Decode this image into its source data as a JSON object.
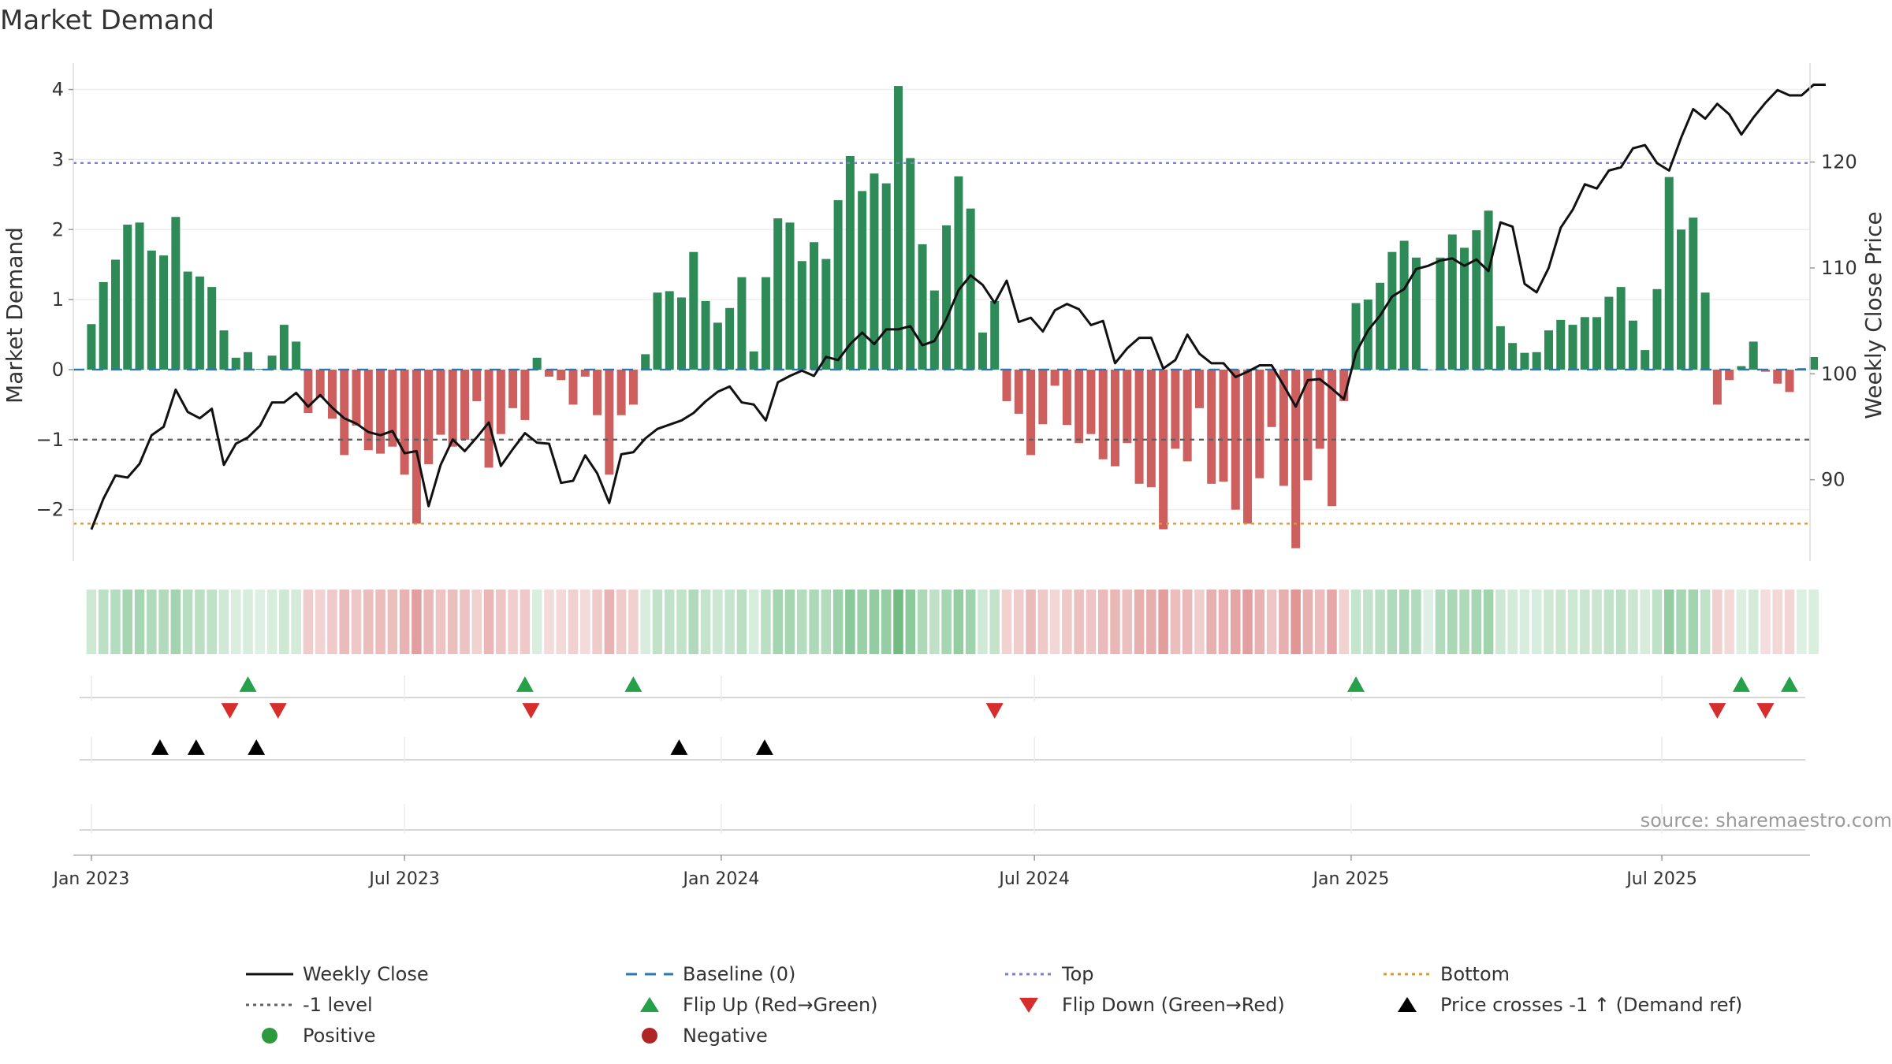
{
  "chart_data": {
    "type": "bar",
    "title": "Market Demand",
    "ylabel": "Market Demand",
    "y2label": "Weekly Close Price",
    "ylim": [
      -2.6,
      4.4
    ],
    "y2lim": [
      83.2,
      129.5
    ],
    "yticks": [
      {
        "value": 4,
        "label": "4"
      },
      {
        "value": 3,
        "label": "3"
      },
      {
        "value": 2,
        "label": "2"
      },
      {
        "value": 1,
        "label": "1"
      },
      {
        "value": 0,
        "label": "0"
      },
      {
        "value": -1,
        "label": "−1"
      },
      {
        "value": -2,
        "label": "−2"
      }
    ],
    "y2ticks": [
      {
        "value": 90,
        "label": "90"
      },
      {
        "value": 100,
        "label": "100"
      },
      {
        "value": 110,
        "label": "110"
      },
      {
        "value": 120,
        "label": "120"
      }
    ],
    "xticks": [
      {
        "week": 0,
        "label": "Jan 2023"
      },
      {
        "week": 26,
        "label": "Jul 2023"
      },
      {
        "week": 52.3,
        "label": "Jan 2024"
      },
      {
        "week": 78.3,
        "label": "Jul 2024"
      },
      {
        "week": 104.6,
        "label": "Jan 2025"
      },
      {
        "week": 130.4,
        "label": "Jul 2025"
      }
    ],
    "reference_lines": [
      {
        "name": "Top",
        "value": 2.95,
        "color": "#7b7fd6",
        "style": "dotted"
      },
      {
        "name": "-1 level",
        "value": -1,
        "color": "#606060",
        "style": "dashed"
      },
      {
        "name": "Bottom",
        "value": -2.2,
        "color": "#e09a2c",
        "style": "dotted"
      },
      {
        "name": "Baseline (0)",
        "value": 0,
        "color": "#2a7ab0",
        "style": "dashed"
      }
    ],
    "weeks_start": -1.5,
    "weeks_end": 142.7,
    "demand": [
      0.65,
      1.25,
      1.57,
      2.07,
      2.1,
      1.7,
      1.63,
      2.18,
      1.4,
      1.33,
      1.18,
      0.56,
      0.17,
      0.25,
      0.01,
      0.2,
      0.64,
      0.4,
      -0.62,
      -0.4,
      -0.7,
      -1.22,
      -0.8,
      -1.15,
      -1.2,
      -1.1,
      -1.5,
      -2.2,
      -1.35,
      -0.93,
      -1.1,
      -1.0,
      -0.45,
      -1.4,
      -0.92,
      -0.55,
      -0.72,
      0.17,
      -0.1,
      -0.15,
      -0.5,
      -0.1,
      -0.65,
      -1.5,
      -0.65,
      -0.5,
      0.22,
      1.1,
      1.12,
      1.03,
      1.68,
      0.98,
      0.67,
      0.88,
      1.32,
      0.26,
      1.32,
      2.16,
      2.1,
      1.55,
      1.82,
      1.58,
      2.42,
      3.05,
      2.55,
      2.8,
      2.66,
      4.05,
      3.02,
      1.79,
      1.13,
      2.06,
      2.76,
      2.3,
      0.53,
      0.98,
      -0.45,
      -0.63,
      -1.22,
      -0.78,
      -0.23,
      -0.79,
      -1.05,
      -0.92,
      -1.28,
      -1.38,
      -1.05,
      -1.63,
      -1.68,
      -2.28,
      -1.13,
      -1.31,
      -0.55,
      -1.63,
      -1.6,
      -2.0,
      -2.2,
      -1.55,
      -0.82,
      -1.66,
      -2.55,
      -1.58,
      -1.13,
      -1.95,
      -0.45,
      0.95,
      1.0,
      1.24,
      1.68,
      1.84,
      1.6,
      0.0,
      1.6,
      1.93,
      1.74,
      1.99,
      2.27,
      0.62,
      0.38,
      0.24,
      0.25,
      0.56,
      0.71,
      0.64,
      0.75,
      0.75,
      1.04,
      1.18,
      0.7,
      0.28,
      1.15,
      2.75,
      2.0,
      2.17,
      1.1,
      -0.5,
      -0.15,
      0.05,
      0.4,
      -0.03,
      -0.2,
      -0.32,
      0.02,
      0.18
    ],
    "close": [
      85.3,
      88.2,
      90.4,
      90.2,
      91.5,
      94.2,
      95.0,
      98.5,
      96.4,
      95.8,
      96.7,
      91.4,
      93.4,
      94.0,
      95.1,
      97.3,
      97.3,
      98.2,
      96.9,
      98.0,
      96.8,
      95.8,
      95.3,
      94.5,
      94.2,
      94.6,
      92.5,
      92.7,
      87.5,
      91.4,
      93.8,
      92.7,
      94.0,
      95.4,
      91.3,
      92.9,
      94.4,
      93.5,
      93.4,
      89.7,
      89.9,
      92.3,
      90.6,
      87.8,
      92.4,
      92.6,
      93.9,
      94.8,
      95.2,
      95.6,
      96.3,
      97.4,
      98.3,
      98.8,
      97.3,
      97.1,
      95.6,
      99.2,
      99.8,
      100.3,
      99.8,
      101.6,
      101.3,
      102.8,
      103.9,
      102.8,
      104.2,
      104.2,
      104.5,
      102.7,
      103.1,
      105.2,
      107.9,
      109.3,
      108.4,
      106.7,
      108.8,
      104.9,
      105.3,
      104.0,
      106.0,
      106.6,
      106.1,
      104.6,
      105.0,
      101.0,
      102.4,
      103.4,
      103.4,
      100.5,
      101.3,
      103.7,
      101.9,
      101.0,
      101.0,
      99.7,
      100.2,
      100.8,
      100.8,
      98.9,
      96.9,
      99.4,
      99.5,
      98.6,
      97.6,
      102.0,
      104.1,
      105.5,
      107.3,
      108.0,
      109.9,
      110.2,
      110.7,
      110.9,
      110.2,
      110.8,
      109.7,
      114.3,
      113.9,
      108.5,
      107.7,
      110.0,
      113.8,
      115.5,
      117.9,
      117.5,
      119.2,
      119.5,
      121.3,
      121.6,
      119.9,
      119.2,
      122.3,
      125.0,
      124.1,
      125.5,
      124.5,
      122.6,
      124.2,
      125.6,
      126.8,
      126.3,
      126.3,
      127.3,
      127.3
    ],
    "flip_up_weeks": [
      13,
      36,
      45,
      105,
      137,
      141
    ],
    "flip_down_weeks": [
      11.5,
      15.5,
      36.5,
      75,
      135,
      139
    ],
    "price_cross_weeks": [
      5.7,
      8.7,
      13.7,
      48.8,
      55.9
    ],
    "strip_colors": {
      "positive": "#4aab62",
      "negative": "#c94545"
    },
    "source": "source: sharemaestro.com",
    "legend": [
      {
        "label": "Weekly Close",
        "kind": "line",
        "color": "#111111"
      },
      {
        "label": "Baseline (0)",
        "kind": "dash",
        "color": "#2a7ab0"
      },
      {
        "label": "Top",
        "kind": "dot",
        "color": "#7b7fd6"
      },
      {
        "label": "Bottom",
        "kind": "dot",
        "color": "#e09a2c"
      },
      {
        "label": "-1 level",
        "kind": "dot",
        "color": "#606060"
      },
      {
        "label": "Flip Up (Red→Green)",
        "kind": "tri-up",
        "color": "#27a04a"
      },
      {
        "label": "Flip Down (Green→Red)",
        "kind": "tri-down",
        "color": "#d62d2d"
      },
      {
        "label": "Price crosses -1 ↑ (Demand ref)",
        "kind": "tri-up",
        "color": "#000000"
      },
      {
        "label": "Positive",
        "kind": "circle",
        "color": "#2a9a3c"
      },
      {
        "label": "Negative",
        "kind": "circle",
        "color": "#b02424"
      }
    ],
    "colors": {
      "positive_bar": "#2e8a57",
      "negative_bar": "#cd5f5f",
      "close_line": "#111111"
    }
  }
}
